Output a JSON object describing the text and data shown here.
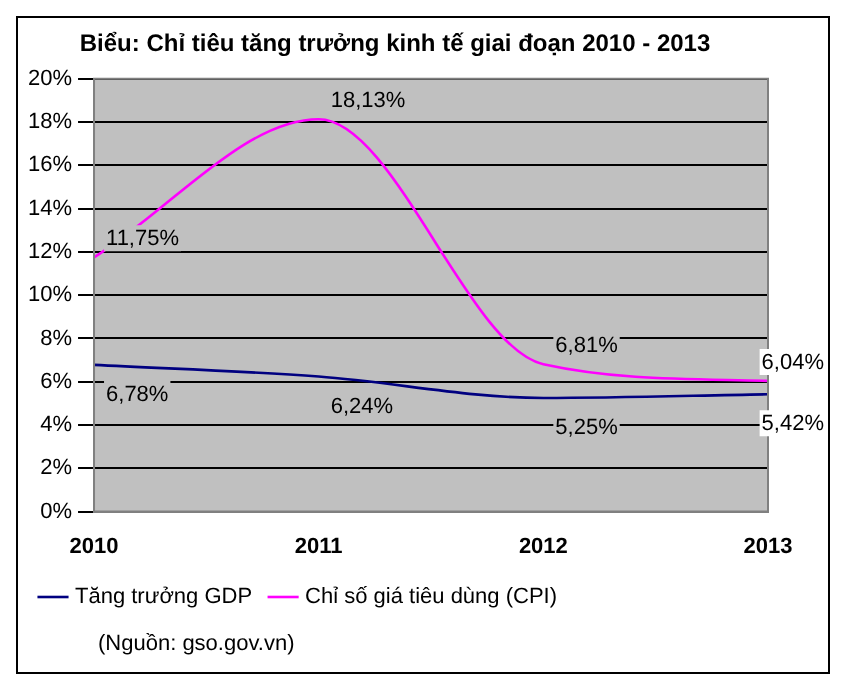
{
  "chart_data": {
    "type": "line",
    "title": "Biểu: Chỉ tiêu tăng trưởng kinh tế giai đoạn 2010 - 2013",
    "categories": [
      "2010",
      "2011",
      "2012",
      "2013"
    ],
    "series": [
      {
        "name": "Tăng trưởng GDP",
        "color": "#000080",
        "values": [
          6.78,
          6.24,
          5.25,
          5.42
        ],
        "value_labels": [
          "6,78%",
          "6,24%",
          "5,25%",
          "5,42%"
        ]
      },
      {
        "name": "Chỉ số giá tiêu dùng (CPI)",
        "color": "#ff00ff",
        "values": [
          11.75,
          18.13,
          6.81,
          6.04
        ],
        "value_labels": [
          "11,75%",
          "18,13%",
          "6,81%",
          "6,04%"
        ]
      }
    ],
    "ylim": [
      0,
      20
    ],
    "yticks": [
      {
        "value": 0,
        "label": "0%"
      },
      {
        "value": 2,
        "label": "2%"
      },
      {
        "value": 4,
        "label": "4%"
      },
      {
        "value": 6,
        "label": "6%"
      },
      {
        "value": 8,
        "label": "8%"
      },
      {
        "value": 10,
        "label": "10%"
      },
      {
        "value": 12,
        "label": "12%"
      },
      {
        "value": 14,
        "label": "14%"
      },
      {
        "value": 16,
        "label": "16%"
      },
      {
        "value": 18,
        "label": "18%"
      },
      {
        "value": 20,
        "label": "20%"
      }
    ],
    "grid": "y",
    "legend": "bottom",
    "marker": "none",
    "line_style": "solid",
    "annotations": [
      "(Nguồn: gso.gov.vn)"
    ]
  }
}
